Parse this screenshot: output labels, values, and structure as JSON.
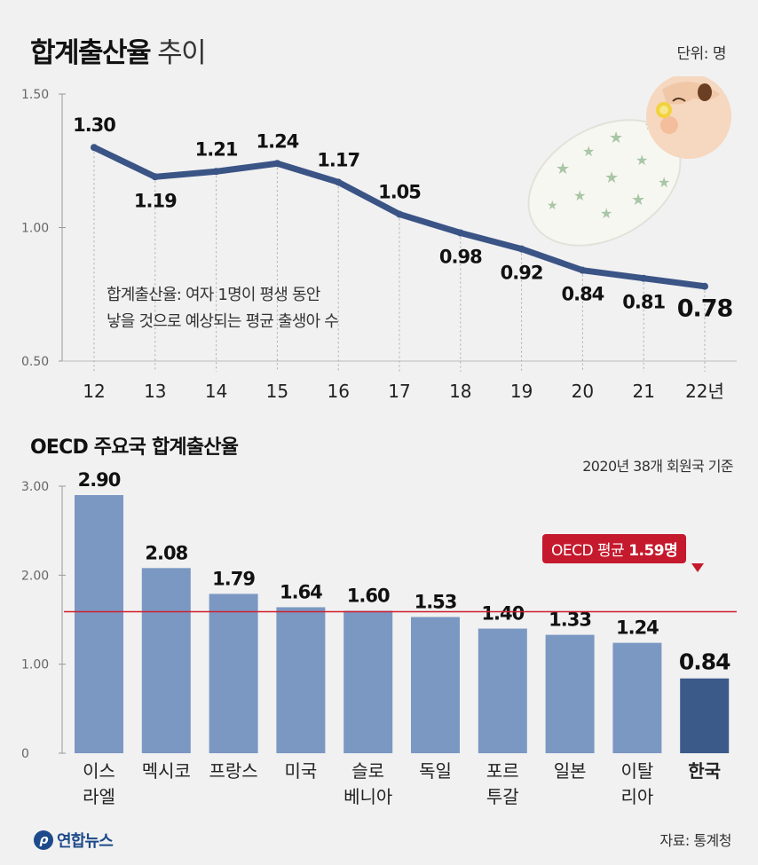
{
  "header": {
    "title_main": "합계출산율",
    "title_sub": "추이",
    "unit": "단위: 명"
  },
  "note": {
    "line1": "합계출산율: 여자 1명이 평생 동안",
    "line2": "낳을 것으로 예상되는 평균 출생아 수"
  },
  "section2": {
    "title": "OECD 주요국 합계출산율",
    "basis": "2020년 38개 회원국 기준",
    "oecd_label": "OECD 평균",
    "oecd_value": "1.59명"
  },
  "footer": {
    "logo": "연합뉴스",
    "source": "자료: 통계청"
  },
  "colors": {
    "line": "#3b5486",
    "bar": "#7b98c3",
    "bar_highlight": "#3b5a8a",
    "avg_line": "#d01e2e",
    "background": "#f1f1f1"
  },
  "icons": [
    "baby-illustration",
    "yonhap-logo-icon"
  ],
  "chart_data": [
    {
      "type": "line",
      "title": "합계출산율 추이",
      "unit": "단위: 명",
      "x": [
        "12",
        "13",
        "14",
        "15",
        "16",
        "17",
        "18",
        "19",
        "20",
        "21",
        "22년"
      ],
      "values": [
        1.3,
        1.19,
        1.21,
        1.24,
        1.17,
        1.05,
        0.98,
        0.92,
        0.84,
        0.81,
        0.78
      ],
      "value_labels": [
        "1.30",
        "1.19",
        "1.21",
        "1.24",
        "1.17",
        "1.05",
        "0.98",
        "0.92",
        "0.84",
        "0.81",
        "0.78"
      ],
      "yticks": [
        "1.50",
        "1.00",
        "0.50"
      ],
      "ytick_values": [
        1.5,
        1.0,
        0.5
      ],
      "ylim": [
        0.5,
        1.5
      ],
      "grid": false
    },
    {
      "type": "bar",
      "title": "OECD 주요국 합계출산율",
      "subtitle": "2020년 38개 회원국 기준",
      "categories": [
        [
          "이스",
          "라엘"
        ],
        [
          "멕시코"
        ],
        [
          "프랑스"
        ],
        [
          "미국"
        ],
        [
          "슬로",
          "베니아"
        ],
        [
          "독일"
        ],
        [
          "포르",
          "투갈"
        ],
        [
          "일본"
        ],
        [
          "이탈",
          "리아"
        ],
        [
          "한국"
        ]
      ],
      "values": [
        2.9,
        2.08,
        1.79,
        1.64,
        1.6,
        1.53,
        1.4,
        1.33,
        1.24,
        0.84
      ],
      "value_labels": [
        "2.90",
        "2.08",
        "1.79",
        "1.64",
        "1.60",
        "1.53",
        "1.40",
        "1.33",
        "1.24",
        "0.84"
      ],
      "highlight_index": 9,
      "yticks": [
        "3.00",
        "2.00",
        "1.00",
        "0"
      ],
      "ytick_values": [
        3,
        2,
        1,
        0
      ],
      "ylim": [
        0,
        3
      ],
      "reference_line": {
        "label": "OECD 평균 1.59명",
        "value": 1.59
      }
    }
  ]
}
